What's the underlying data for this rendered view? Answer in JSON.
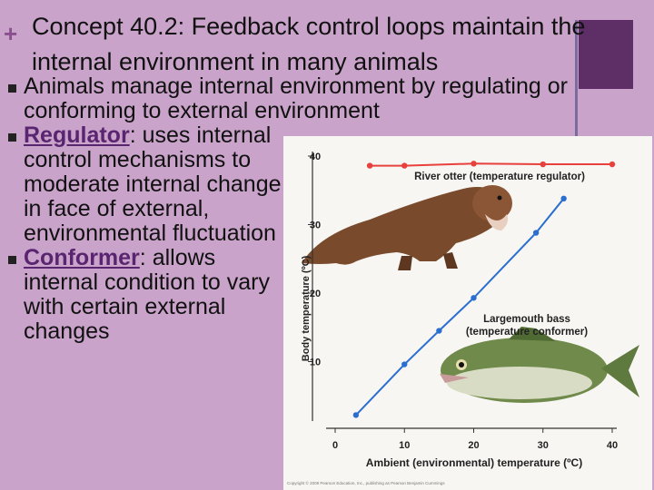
{
  "slide": {
    "plus": "+",
    "title_line1": "Concept 40.2: Feedback control loops maintain the",
    "title_line2": "internal environment in many animals",
    "bullets": {
      "b1": "Animals manage internal environment by regulating or conforming to external environment",
      "b2_term": "Regulator",
      "b2_rest": ": uses internal control mechanisms to moderate internal change in face of external, environmental fluctuation",
      "b3_term": "Conformer",
      "b3_rest": ": allows internal condition to vary with certain external changes"
    },
    "credit": "Copyright © 2008 Pearson Education, Inc., publishing as Pearson Benjamin Cummings",
    "colors": {
      "background": "#c9a3c9",
      "accent": "#5e2f66",
      "regulator": "#e8403c",
      "conformer": "#2a6fd0"
    }
  },
  "chart_data": {
    "type": "line",
    "xlabel": "Ambient (environmental) temperature (ºC)",
    "ylabel": "Body temperature (ºC)",
    "xlim": [
      0,
      40
    ],
    "ylim": [
      0,
      40
    ],
    "xticks": [
      0,
      10,
      20,
      30,
      40
    ],
    "yticks": [
      10,
      20,
      30,
      40
    ],
    "series": [
      {
        "name": "River otter (temperature regulator)",
        "x": [
          5,
          10,
          20,
          30,
          40
        ],
        "values": [
          38.6,
          38.6,
          38.9,
          38.8,
          38.8
        ],
        "color": "#e8403c",
        "label_text": "River otter (temperature regulator)"
      },
      {
        "name": "Largemouth bass (temperature conformer)",
        "x": [
          3,
          10,
          15,
          20,
          29,
          33
        ],
        "values": [
          2.2,
          9.6,
          14.5,
          19.3,
          28.8,
          33.8
        ],
        "color": "#2a6fd0",
        "label_line1": "Largemouth bass",
        "label_line2": "(temperature conformer)"
      }
    ],
    "grid": false
  }
}
